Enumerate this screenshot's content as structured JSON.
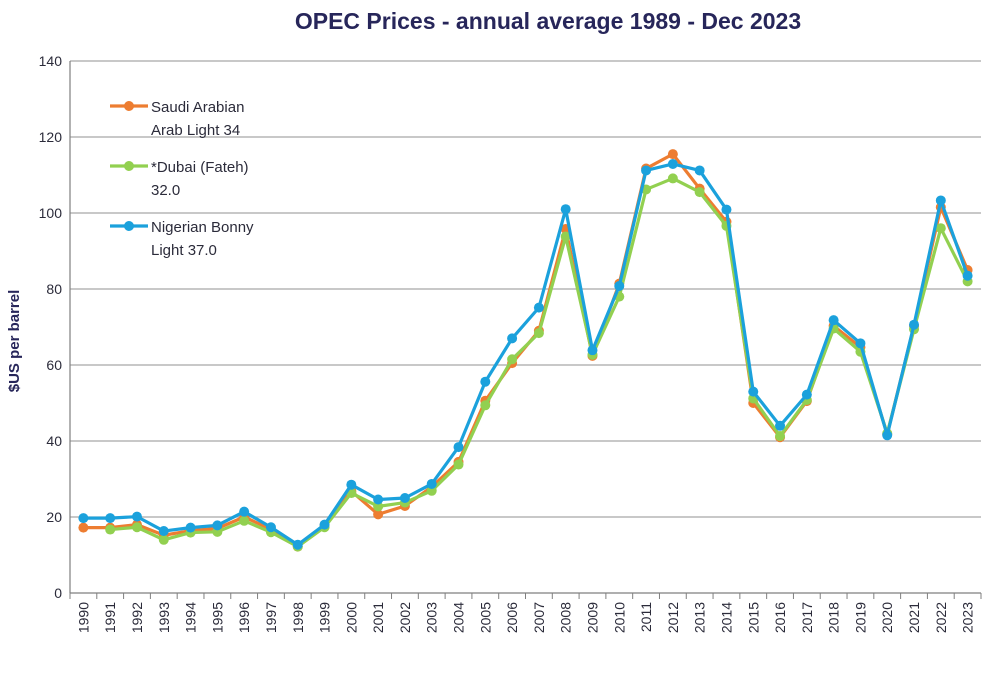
{
  "chart_data": {
    "type": "line",
    "title": "OPEC Prices - annual average 1989 - Dec 2023",
    "xlabel": "",
    "ylabel": "$US per barrel",
    "ylim": [
      0,
      140
    ],
    "yticks": [
      0,
      20,
      40,
      60,
      80,
      100,
      120,
      140
    ],
    "grid": true,
    "legend_position": "top-left",
    "categories": [
      "1990",
      "1991",
      "1992",
      "1993",
      "1994",
      "1995",
      "1996",
      "1997",
      "1998",
      "1999",
      "2000",
      "2001",
      "2002",
      "2003",
      "2004",
      "2005",
      "2006",
      "2007",
      "2008",
      "2009",
      "2010",
      "2011",
      "2012",
      "2013",
      "2014",
      "2015",
      "2016",
      "2017",
      "2018",
      "2019",
      "2020",
      "2021",
      "2022",
      "2023"
    ],
    "series": [
      {
        "name": "Saudi Arabian Arab Light 34",
        "legend_lines": [
          "Saudi Arabian",
          "Arab Light 34"
        ],
        "color": "#ed7d31",
        "values": [
          17.2,
          17.2,
          18.0,
          15.2,
          16.4,
          17.0,
          20.0,
          16.8,
          12.2,
          17.9,
          26.8,
          20.7,
          22.9,
          27.9,
          34.5,
          50.6,
          60.5,
          69.0,
          95.8,
          62.4,
          81.4,
          111.7,
          115.5,
          106.4,
          97.7,
          50.0,
          41.0,
          50.5,
          70.3,
          64.7,
          41.8,
          70.3,
          101.5,
          85.0
        ]
      },
      {
        "name": "*Dubai (Fateh) 32.0",
        "legend_lines": [
          "*Dubai (Fateh)",
          "32.0"
        ],
        "color": "#92d050",
        "values": [
          null,
          16.7,
          17.3,
          14.0,
          15.9,
          16.1,
          19.0,
          16.0,
          12.2,
          17.3,
          26.3,
          22.8,
          23.8,
          26.9,
          33.8,
          49.4,
          61.5,
          68.4,
          93.8,
          62.7,
          78.0,
          106.2,
          109.1,
          105.5,
          96.6,
          51.2,
          41.3,
          50.8,
          69.6,
          63.5,
          42.0,
          69.4,
          96.0,
          82.0
        ]
      },
      {
        "name": "Nigerian Bonny Light 37.0",
        "legend_lines": [
          "Nigerian Bonny",
          "Light 37.0"
        ],
        "color": "#1ba1dc",
        "values": [
          19.7,
          19.7,
          20.1,
          16.3,
          17.2,
          17.8,
          21.4,
          17.3,
          12.7,
          18.0,
          28.5,
          24.6,
          25.0,
          28.7,
          38.4,
          55.6,
          67.0,
          75.1,
          101.0,
          63.9,
          80.8,
          111.2,
          112.9,
          111.2,
          100.9,
          53.0,
          44.0,
          52.2,
          71.8,
          65.7,
          41.5,
          70.6,
          103.3,
          83.5
        ]
      }
    ]
  }
}
